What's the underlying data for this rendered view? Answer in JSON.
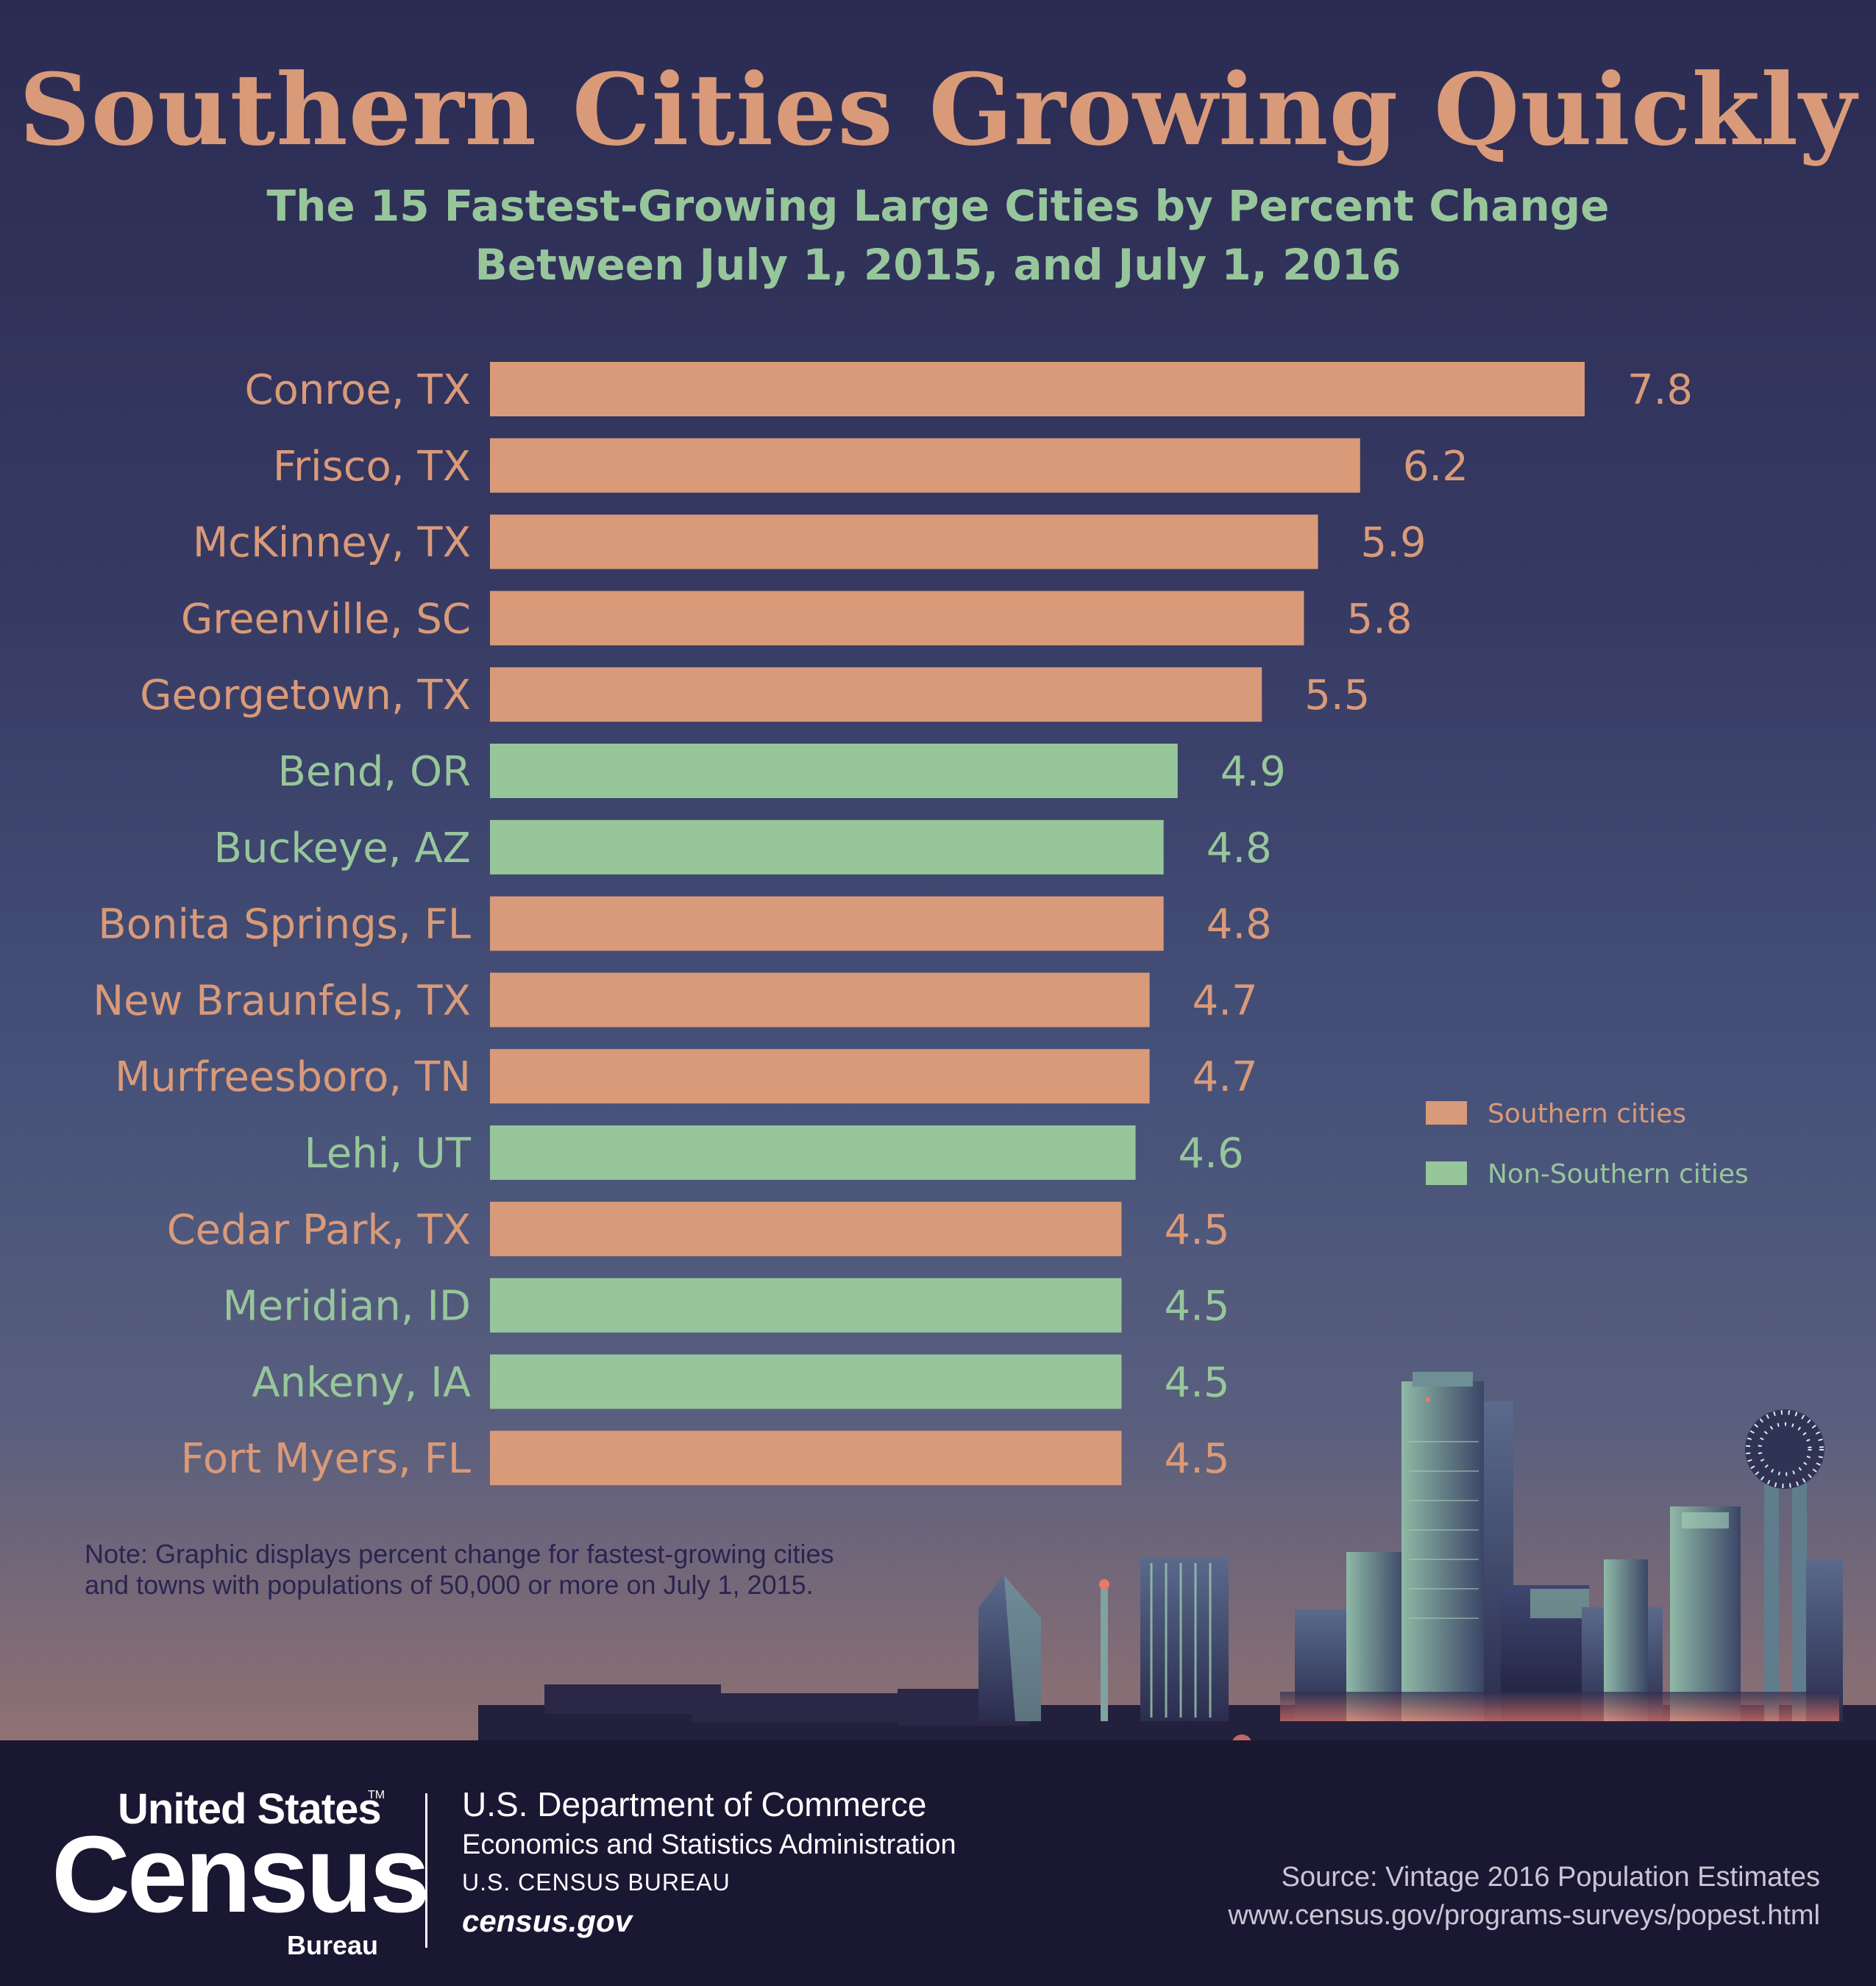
{
  "colors": {
    "southern": "#d99a79",
    "non_southern": "#97c69b",
    "title": "#d99a79",
    "subtitle": "#97c69b"
  },
  "chart_data": {
    "type": "bar",
    "orientation": "horizontal",
    "title": "Southern Cities Growing Quickly",
    "subtitle_lines": [
      "The 15 Fastest-Growing Large Cities by Percent Change",
      "Between July 1, 2015, and July 1, 2016"
    ],
    "xlabel": "",
    "ylabel": "",
    "xlim": [
      0,
      7.8
    ],
    "grid": false,
    "legend_position": "right",
    "legend": [
      {
        "name": "Southern cities",
        "group": "southern"
      },
      {
        "name": "Non-Southern cities",
        "group": "non_southern"
      }
    ],
    "categories": [
      "Conroe, TX",
      "Frisco, TX",
      "McKinney, TX",
      "Greenville, SC",
      "Georgetown, TX",
      "Bend, OR",
      "Buckeye, AZ",
      "Bonita Springs, FL",
      "New Braunfels, TX",
      "Murfreesboro, TN",
      "Lehi, UT",
      "Cedar Park, TX",
      "Meridian, ID",
      "Ankeny, IA",
      "Fort Myers, FL"
    ],
    "values": [
      7.8,
      6.2,
      5.9,
      5.8,
      5.5,
      4.9,
      4.8,
      4.8,
      4.7,
      4.7,
      4.6,
      4.5,
      4.5,
      4.5,
      4.5
    ],
    "value_labels": [
      "7.8",
      "6.2",
      "5.9",
      "5.8",
      "5.5",
      "4.9",
      "4.8",
      "4.8",
      "4.7",
      "4.7",
      "4.6",
      "4.5",
      "4.5",
      "4.5",
      "4.5"
    ],
    "groups": [
      "southern",
      "southern",
      "southern",
      "southern",
      "southern",
      "non_southern",
      "non_southern",
      "southern",
      "southern",
      "southern",
      "non_southern",
      "southern",
      "non_southern",
      "non_southern",
      "southern"
    ]
  },
  "note": {
    "line1": "Note: Graphic displays percent change for fastest-growing cities",
    "line2": "and towns with populations of 50,000 or more on July 1, 2015."
  },
  "footer": {
    "logo_line1": "United States",
    "logo_tm": "TM",
    "logo_line2": "Census",
    "logo_line3": "Bureau",
    "dept_line1": "U.S. Department of Commerce",
    "dept_line2": "Economics and Statistics Administration",
    "dept_line3": "U.S. CENSUS BUREAU",
    "dept_line4": "census.gov",
    "source_line1": "Source: Vintage 2016 Population Estimates",
    "source_line2": "www.census.gov/programs-surveys/popest.html"
  }
}
